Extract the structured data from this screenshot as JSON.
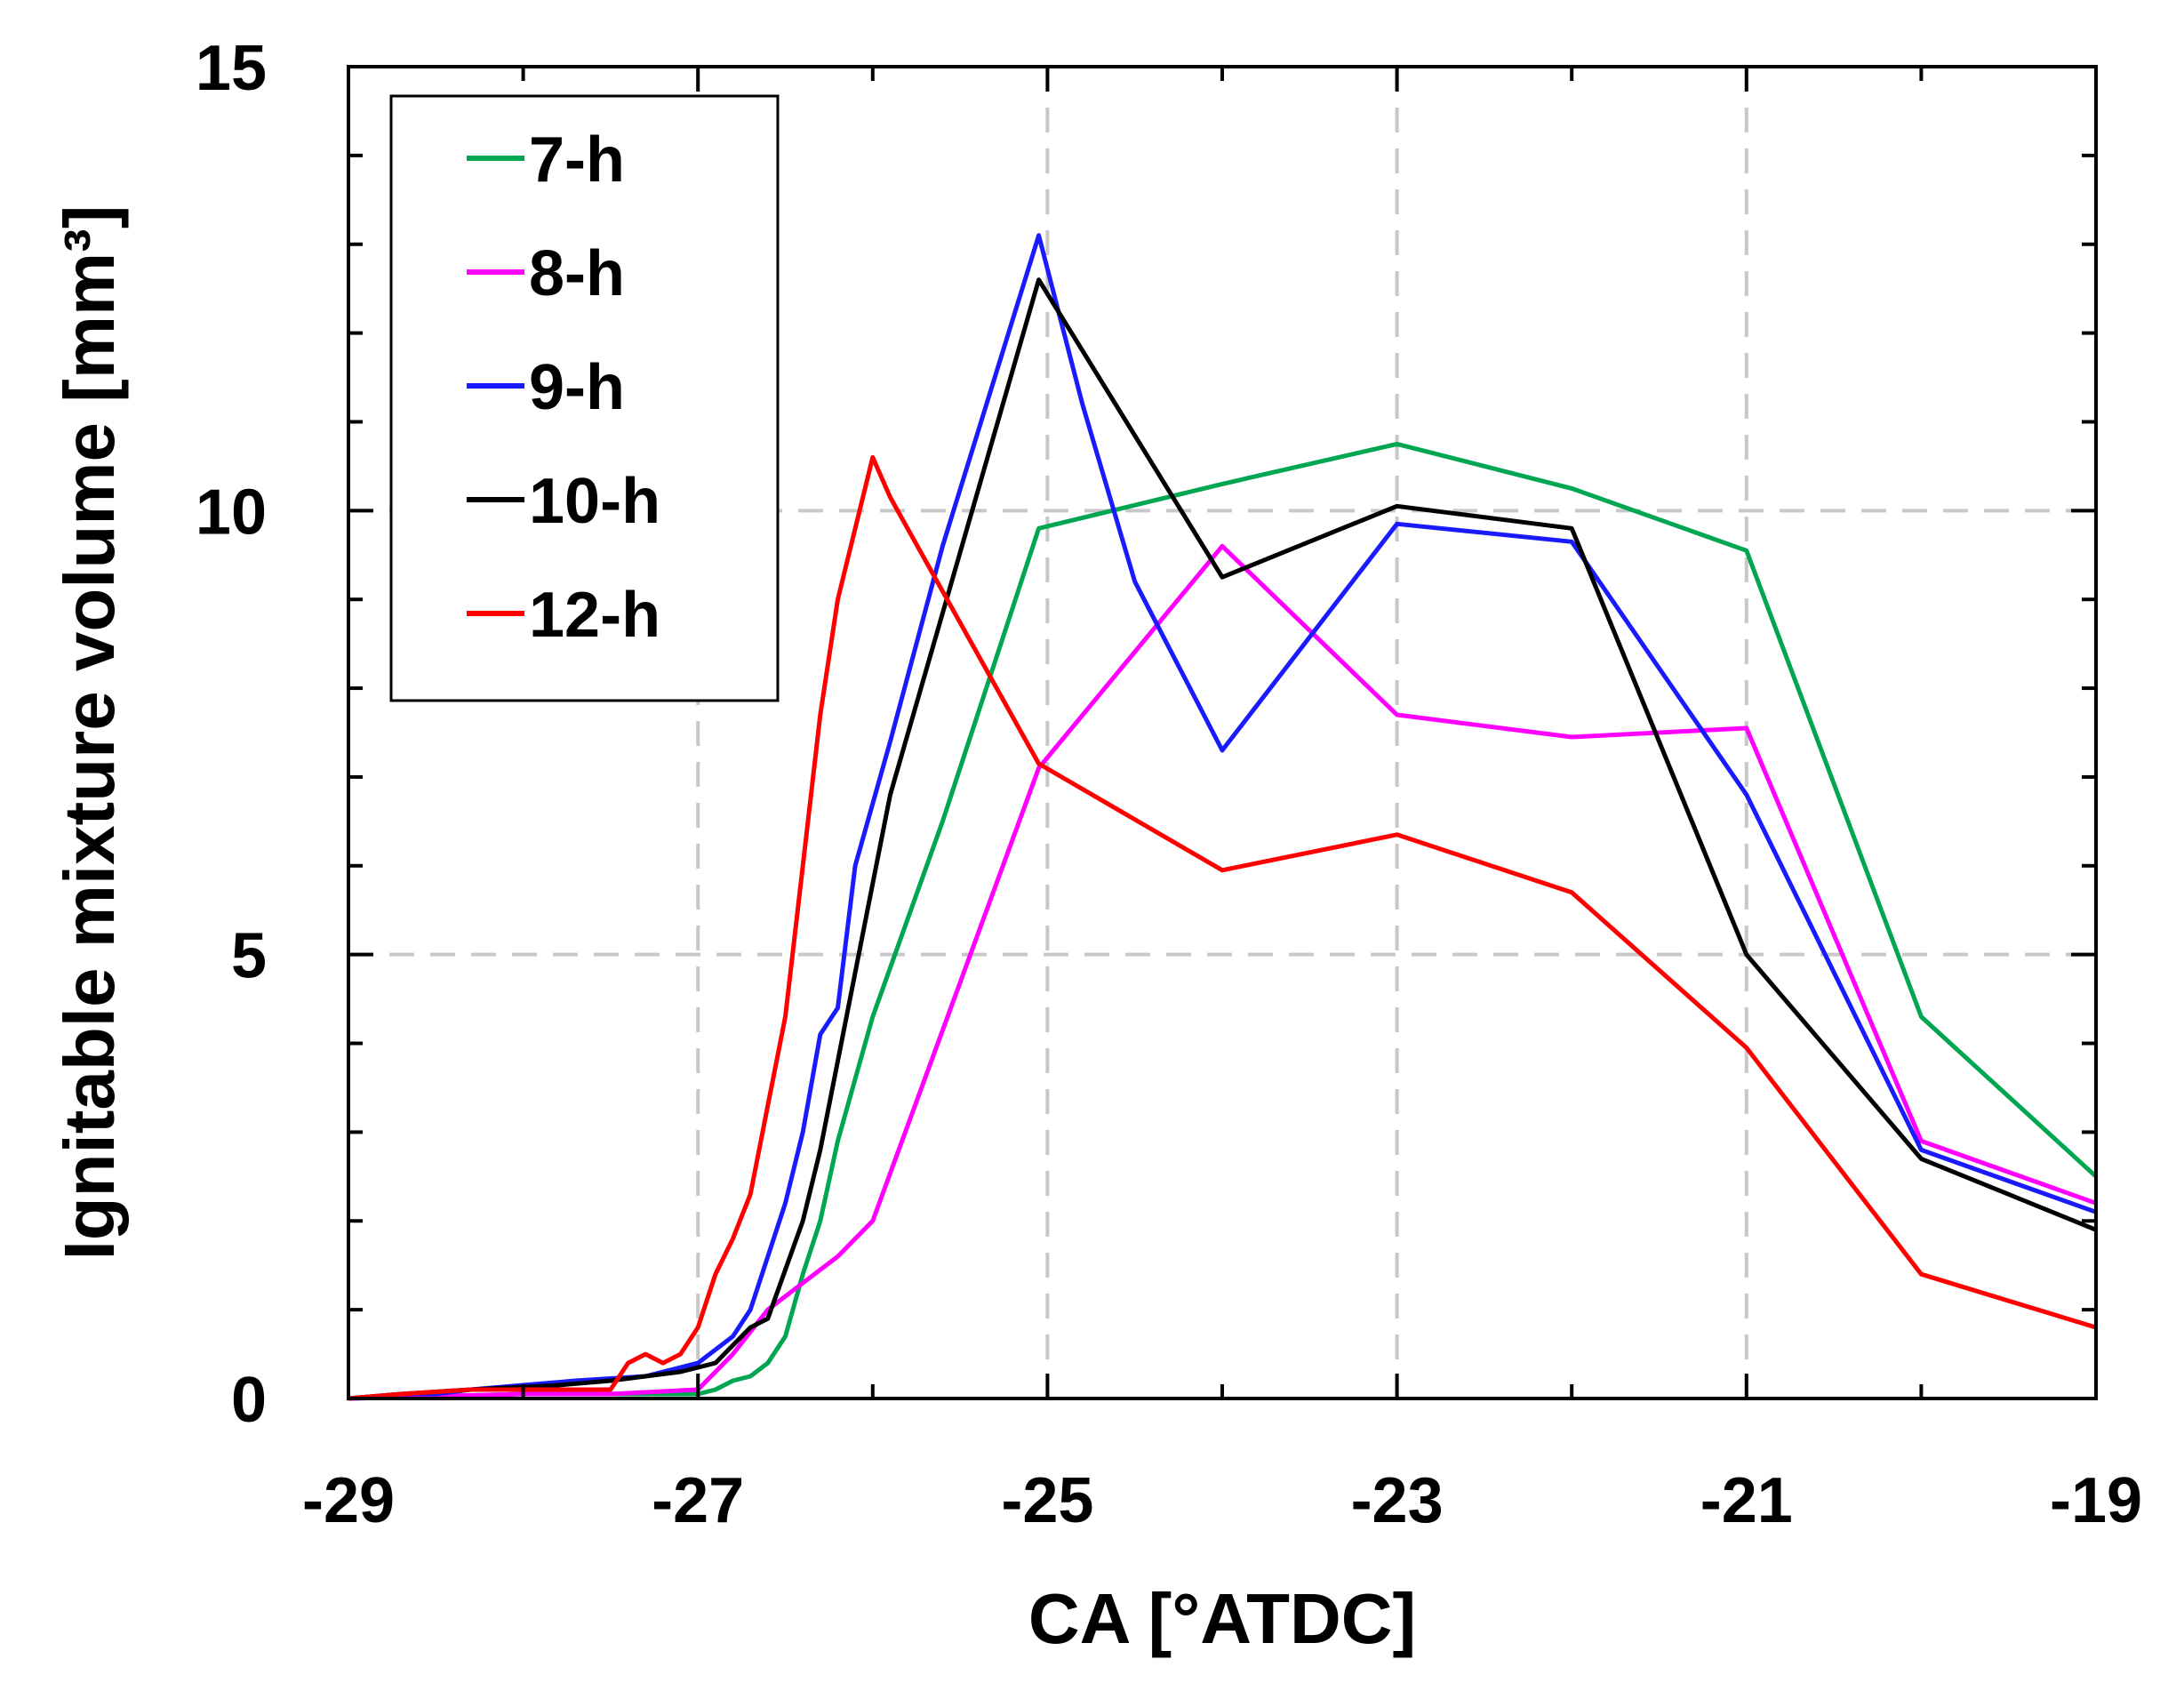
{
  "chart_data": {
    "type": "line",
    "title": "",
    "xlabel": "CA [°ATDC]",
    "ylabel": "Ignitable mixture volume [mm³]",
    "xlim": [
      -29,
      -19
    ],
    "ylim": [
      0,
      15
    ],
    "xticks": [
      -29,
      -27,
      -25,
      -23,
      -21,
      -19
    ],
    "yticks": [
      0,
      5,
      10,
      15
    ],
    "xtick_labels": [
      "-29",
      "-27",
      "-25",
      "-23",
      "-21",
      "-19"
    ],
    "ytick_labels": [
      "0",
      "5",
      "10",
      "15"
    ],
    "grid": true,
    "legend_position": "top-left",
    "series": [
      {
        "name": "7-h",
        "color": "#00a651",
        "points": [
          [
            -29,
            0
          ],
          [
            -28,
            0.05
          ],
          [
            -27.5,
            0.05
          ],
          [
            -27,
            0.05
          ],
          [
            -26.9,
            0.1
          ],
          [
            -26.8,
            0.2
          ],
          [
            -26.7,
            0.25
          ],
          [
            -26.6,
            0.4
          ],
          [
            -26.5,
            0.7
          ],
          [
            -26.4,
            1.4
          ],
          [
            -26.3,
            2.0
          ],
          [
            -26.2,
            2.9
          ],
          [
            -26.1,
            3.6
          ],
          [
            -26.0,
            4.3
          ],
          [
            -25.6,
            6.5
          ],
          [
            -25.3,
            8.3
          ],
          [
            -25.05,
            9.8
          ],
          [
            -24,
            10.3
          ],
          [
            -23,
            10.75
          ],
          [
            -22,
            10.25
          ],
          [
            -21,
            9.55
          ],
          [
            -20,
            4.3
          ],
          [
            -19,
            2.5
          ]
        ]
      },
      {
        "name": "8-h",
        "color": "#ff00ff",
        "points": [
          [
            -29,
            0
          ],
          [
            -28,
            0.05
          ],
          [
            -27.5,
            0.05
          ],
          [
            -27,
            0.1
          ],
          [
            -26.8,
            0.5
          ],
          [
            -26.6,
            1.0
          ],
          [
            -26.2,
            1.6
          ],
          [
            -26.0,
            2.0
          ],
          [
            -25.05,
            7.1
          ],
          [
            -24,
            9.6
          ],
          [
            -23,
            7.7
          ],
          [
            -22,
            7.45
          ],
          [
            -21,
            7.55
          ],
          [
            -20,
            2.9
          ],
          [
            -19,
            2.2
          ]
        ]
      },
      {
        "name": "9-h",
        "color": "#1a1aff",
        "points": [
          [
            -29,
            0
          ],
          [
            -28.7,
            0.05
          ],
          [
            -28.5,
            0.05
          ],
          [
            -28.3,
            0.1
          ],
          [
            -28.0,
            0.15
          ],
          [
            -27.7,
            0.2
          ],
          [
            -27.3,
            0.25
          ],
          [
            -27.0,
            0.4
          ],
          [
            -26.8,
            0.7
          ],
          [
            -26.7,
            1.0
          ],
          [
            -26.5,
            2.2
          ],
          [
            -26.4,
            3.0
          ],
          [
            -26.3,
            4.1
          ],
          [
            -26.2,
            4.4
          ],
          [
            -26.1,
            6.0
          ],
          [
            -25.9,
            7.4
          ],
          [
            -25.6,
            9.6
          ],
          [
            -25.05,
            13.1
          ],
          [
            -24.8,
            11.2
          ],
          [
            -24.5,
            9.2
          ],
          [
            -24,
            7.3
          ],
          [
            -23,
            9.85
          ],
          [
            -22,
            9.65
          ],
          [
            -21,
            6.8
          ],
          [
            -20,
            2.8
          ],
          [
            -19,
            2.1
          ]
        ]
      },
      {
        "name": "10-h",
        "color": "#000000",
        "points": [
          [
            -29,
            0
          ],
          [
            -28.7,
            0.05
          ],
          [
            -28.3,
            0.1
          ],
          [
            -27.8,
            0.15
          ],
          [
            -27.5,
            0.2
          ],
          [
            -27.1,
            0.3
          ],
          [
            -26.9,
            0.4
          ],
          [
            -26.7,
            0.8
          ],
          [
            -26.6,
            0.9
          ],
          [
            -26.4,
            2.0
          ],
          [
            -26.3,
            2.8
          ],
          [
            -26.2,
            3.8
          ],
          [
            -26.0,
            5.8
          ],
          [
            -25.9,
            6.8
          ],
          [
            -25.05,
            12.6
          ],
          [
            -24,
            9.25
          ],
          [
            -23,
            10.05
          ],
          [
            -22,
            9.8
          ],
          [
            -21,
            5.0
          ],
          [
            -20,
            2.7
          ],
          [
            -19,
            1.9
          ]
        ]
      },
      {
        "name": "12-h",
        "color": "#ff0000",
        "points": [
          [
            -29,
            0
          ],
          [
            -28.7,
            0.05
          ],
          [
            -28.3,
            0.1
          ],
          [
            -28.0,
            0.1
          ],
          [
            -27.7,
            0.1
          ],
          [
            -27.5,
            0.1
          ],
          [
            -27.4,
            0.4
          ],
          [
            -27.3,
            0.5
          ],
          [
            -27.2,
            0.4
          ],
          [
            -27.1,
            0.5
          ],
          [
            -27.0,
            0.8
          ],
          [
            -26.9,
            1.4
          ],
          [
            -26.8,
            1.8
          ],
          [
            -26.7,
            2.3
          ],
          [
            -26.6,
            3.3
          ],
          [
            -26.5,
            4.3
          ],
          [
            -26.4,
            6.0
          ],
          [
            -26.3,
            7.7
          ],
          [
            -26.2,
            9.0
          ],
          [
            -26.0,
            10.6
          ],
          [
            -25.9,
            10.15
          ],
          [
            -25.05,
            7.15
          ],
          [
            -24,
            5.95
          ],
          [
            -23,
            6.35
          ],
          [
            -22,
            5.7
          ],
          [
            -21,
            3.95
          ],
          [
            -20,
            1.4
          ],
          [
            -19,
            0.8
          ]
        ]
      }
    ]
  }
}
